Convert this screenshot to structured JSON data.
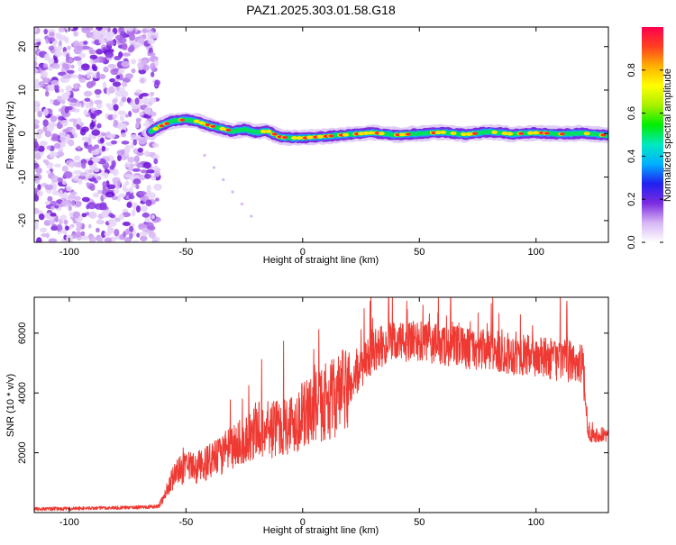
{
  "chart_data": [
    {
      "type": "heatmap",
      "title": "PAZ1.2025.303.01.58.G18",
      "xlabel": "Height of straight line (km)",
      "ylabel": "Frequency (Hz)",
      "xlim": [
        -115,
        131
      ],
      "ylim": [
        -25,
        24.5
      ],
      "xticks": [
        -100,
        -50,
        0,
        50,
        100
      ],
      "yticks": [
        -20,
        -10,
        0,
        10,
        20
      ],
      "colorbar": {
        "label": "Normalized spectral amplitude",
        "range": [
          0,
          1
        ],
        "ticks": [
          "0.0",
          "0.2",
          "0.4",
          "0.6",
          "0.8"
        ],
        "colors": [
          "#ffffff",
          "#d7b6f5",
          "#7b2be0",
          "#2020f0",
          "#00b0ff",
          "#00e8c0",
          "#00ee00",
          "#a8f000",
          "#ffff00",
          "#ffb000",
          "#ff4020",
          "#ff0050"
        ]
      },
      "series": [
        {
          "name": "Spectral ridge (frequency, Hz)",
          "x": [
            -65,
            -60,
            -55,
            -50,
            -45,
            -40,
            -35,
            -30,
            -25,
            -20,
            -15,
            -10,
            -5,
            0,
            10,
            20,
            30,
            40,
            50,
            60,
            70,
            80,
            90,
            100,
            110,
            120,
            130
          ],
          "values": [
            0.5,
            2.0,
            3.0,
            3.2,
            2.8,
            1.8,
            1.2,
            0.5,
            1.0,
            0.3,
            0.6,
            -0.8,
            -1.0,
            -1.0,
            -0.6,
            -0.2,
            0.2,
            -0.3,
            0.0,
            0.3,
            -0.2,
            0.4,
            -0.1,
            0.2,
            -0.1,
            0.1,
            -0.4
          ]
        },
        {
          "name": "Noise region extent (km)",
          "x": [
            -115,
            -62
          ],
          "values": [
            -25,
            24.5
          ]
        }
      ]
    },
    {
      "type": "line",
      "xlabel": "Height of straight line (km)",
      "ylabel": "SNR (10 * v/v)",
      "xlim": [
        -115,
        131
      ],
      "ylim": [
        0,
        7200
      ],
      "xticks": [
        -100,
        -50,
        0,
        50,
        100
      ],
      "yticks": [
        2000,
        4000,
        6000
      ],
      "color": "#ee3a33",
      "series": [
        {
          "name": "SNR",
          "x": [
            -115,
            -100,
            -90,
            -80,
            -70,
            -62,
            -58,
            -55,
            -50,
            -45,
            -40,
            -35,
            -30,
            -25,
            -20,
            -15,
            -10,
            -5,
            0,
            5,
            10,
            15,
            20,
            25,
            30,
            35,
            40,
            50,
            60,
            70,
            80,
            90,
            100,
            110,
            120,
            122,
            124,
            131
          ],
          "values": [
            120,
            130,
            150,
            160,
            180,
            200,
            700,
            1300,
            1500,
            1500,
            1700,
            1900,
            2200,
            2400,
            2800,
            2700,
            2900,
            3000,
            3200,
            3500,
            3700,
            3900,
            4200,
            4800,
            5400,
            5600,
            5700,
            5700,
            5600,
            5500,
            5400,
            5300,
            5200,
            5100,
            5000,
            2700,
            2600,
            2600
          ]
        }
      ]
    }
  ]
}
